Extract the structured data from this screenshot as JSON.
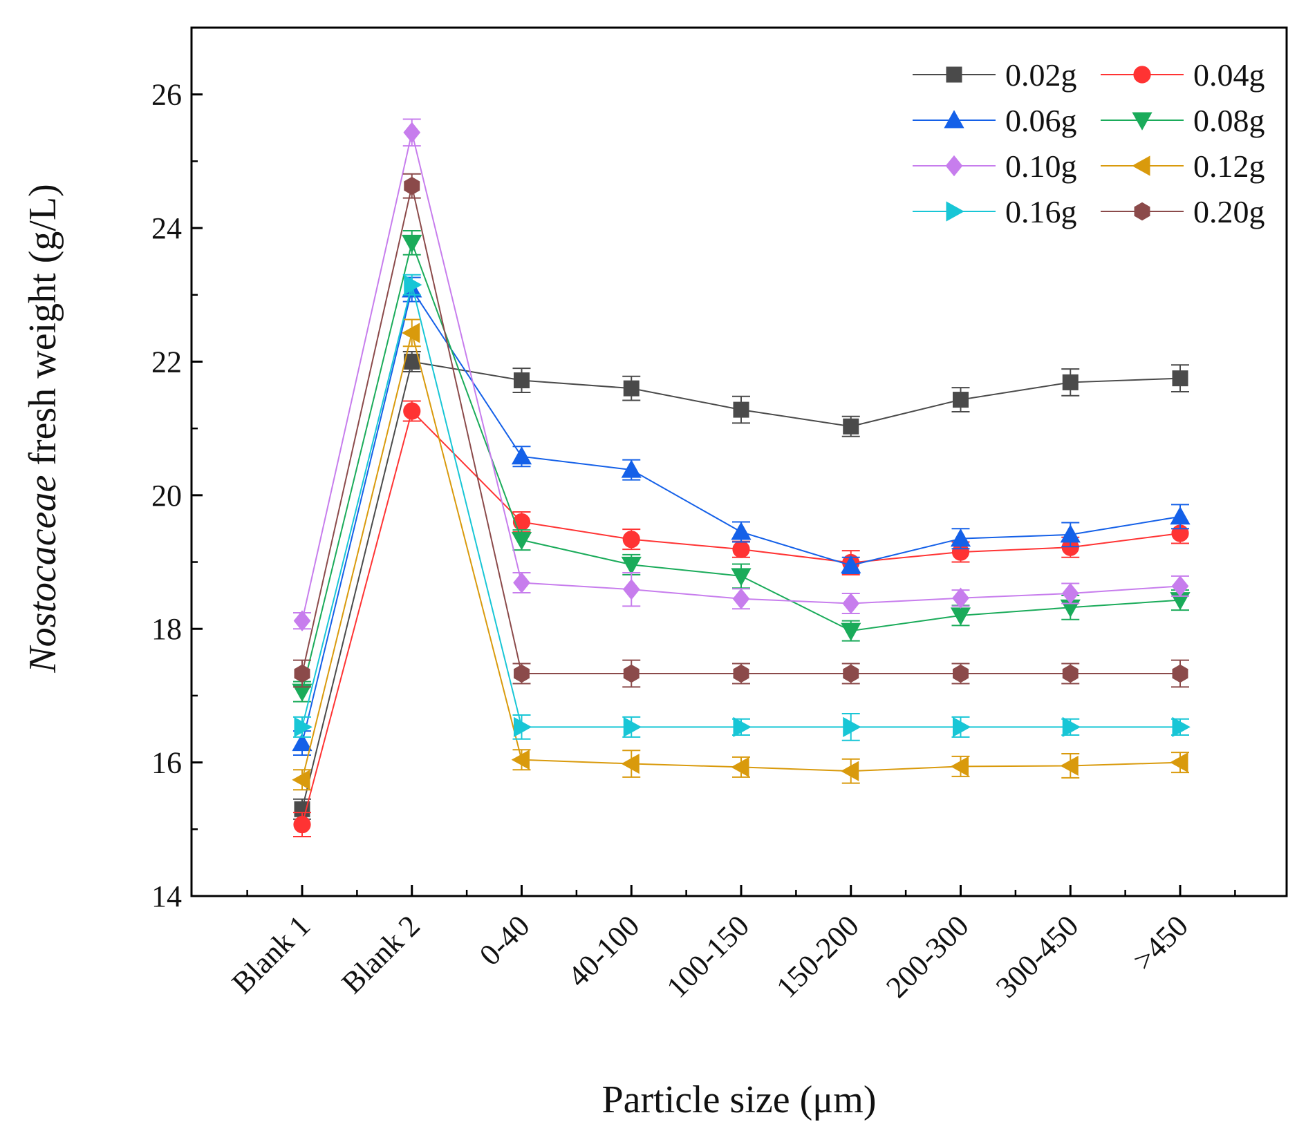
{
  "chart_data": {
    "type": "line",
    "title": "",
    "xlabel": "Particle size (μm)",
    "ylabel_italic": "Nostocaceae",
    "ylabel_rest": " fresh weight (g/L)",
    "categories": [
      "Blank 1",
      "Blank 2",
      "0-40",
      "40-100",
      "100-150",
      "150-200",
      "200-300",
      "300-450",
      ">450"
    ],
    "ylim": [
      14,
      27
    ],
    "yticks": [
      14,
      16,
      18,
      20,
      22,
      24,
      26
    ],
    "ytick_labels": [
      "14",
      "16",
      "18",
      "20",
      "22",
      "24",
      "26"
    ],
    "legend_position": "top-right",
    "grid": false,
    "series": [
      {
        "name": "0.02g",
        "color": "#4a4a4a",
        "marker": "square",
        "values": [
          15.3,
          22.0,
          21.72,
          21.6,
          21.28,
          21.03,
          21.43,
          21.69,
          21.75
        ],
        "errors": [
          0.15,
          0.15,
          0.18,
          0.18,
          0.2,
          0.15,
          0.18,
          0.2,
          0.2
        ]
      },
      {
        "name": "0.04g",
        "color": "#ff3333",
        "marker": "circle",
        "values": [
          15.07,
          21.26,
          19.6,
          19.34,
          19.19,
          18.99,
          19.15,
          19.22,
          19.43
        ],
        "errors": [
          0.18,
          0.15,
          0.15,
          0.15,
          0.12,
          0.18,
          0.15,
          0.15,
          0.15
        ]
      },
      {
        "name": "0.06g",
        "color": "#1460e8",
        "marker": "triangle-up",
        "values": [
          16.29,
          23.08,
          20.58,
          20.38,
          19.45,
          18.95,
          19.35,
          19.41,
          19.68
        ],
        "errors": [
          0.18,
          0.18,
          0.15,
          0.15,
          0.15,
          0.12,
          0.15,
          0.18,
          0.18
        ]
      },
      {
        "name": "0.08g",
        "color": "#1aab5a",
        "marker": "triangle-down",
        "values": [
          17.06,
          23.78,
          19.33,
          18.96,
          18.79,
          17.97,
          18.2,
          18.32,
          18.43
        ],
        "errors": [
          0.15,
          0.18,
          0.15,
          0.15,
          0.18,
          0.15,
          0.15,
          0.18,
          0.15
        ]
      },
      {
        "name": "0.10g",
        "color": "#c77ded",
        "marker": "diamond",
        "values": [
          18.12,
          25.43,
          18.69,
          18.59,
          18.45,
          18.38,
          18.46,
          18.53,
          18.64
        ],
        "errors": [
          0.12,
          0.2,
          0.15,
          0.25,
          0.15,
          0.15,
          0.12,
          0.15,
          0.15
        ]
      },
      {
        "name": "0.12g",
        "color": "#d99a0c",
        "marker": "triangle-left",
        "values": [
          15.74,
          22.43,
          16.04,
          15.98,
          15.93,
          15.87,
          15.94,
          15.95,
          16.0
        ],
        "errors": [
          0.15,
          0.2,
          0.15,
          0.2,
          0.15,
          0.18,
          0.15,
          0.18,
          0.15
        ]
      },
      {
        "name": "0.16g",
        "color": "#18c6d6",
        "marker": "triangle-right",
        "values": [
          16.53,
          23.15,
          16.53,
          16.53,
          16.53,
          16.53,
          16.53,
          16.53,
          16.53
        ],
        "errors": [
          0.15,
          0.15,
          0.18,
          0.15,
          0.12,
          0.2,
          0.15,
          0.12,
          0.12
        ]
      },
      {
        "name": "0.20g",
        "color": "#8b4a4a",
        "marker": "hexagon",
        "values": [
          17.33,
          24.63,
          17.33,
          17.33,
          17.33,
          17.33,
          17.33,
          17.33,
          17.33
        ],
        "errors": [
          0.2,
          0.18,
          0.15,
          0.2,
          0.15,
          0.15,
          0.15,
          0.15,
          0.2
        ]
      }
    ]
  }
}
